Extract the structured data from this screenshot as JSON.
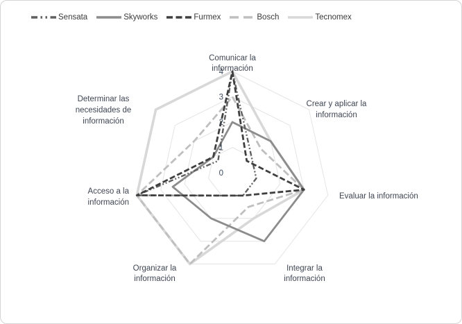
{
  "chart_data": {
    "type": "radar",
    "title": "",
    "legend_position": "top",
    "axis_range": {
      "min": 0,
      "max": 4,
      "step": 1
    },
    "tick_labels": [
      "0",
      "1",
      "2",
      "3",
      "4"
    ],
    "grid": {
      "shape": "heptagon",
      "rings": [
        1,
        2,
        3,
        4
      ],
      "color": "#e4e4e4"
    },
    "categories": [
      {
        "key": "comunicar",
        "label": "Comunicar la información",
        "lines": [
          "Comunicar la",
          "información"
        ]
      },
      {
        "key": "crear",
        "label": "Crear y aplicar la información",
        "lines": [
          "Crear y aplicar la",
          "información"
        ]
      },
      {
        "key": "evaluar",
        "label": "Evaluar la información",
        "lines": [
          "Evaluar la información"
        ]
      },
      {
        "key": "integrar",
        "label": "Integrar la información",
        "lines": [
          "Integrar la",
          "información"
        ]
      },
      {
        "key": "organizar",
        "label": "Organizar la información",
        "lines": [
          "Organizar la",
          "información"
        ]
      },
      {
        "key": "acceso",
        "label": "Acceso a la información",
        "lines": [
          "Acceso a la",
          "información"
        ]
      },
      {
        "key": "determinar",
        "label": "Determinar las necesidades de información",
        "lines": [
          "Determinar las",
          "necesidades de",
          "información"
        ]
      }
    ],
    "series": [
      {
        "key": "sensata",
        "name": "Sensata",
        "color": "#5f5f5f",
        "dash": "7 3 1.8 3 1.8 3",
        "legend_dash": "9 4.5 2.5 4.5 2.5 4.5",
        "width": 2.4,
        "values": [
          4,
          1,
          1,
          1,
          1,
          4,
          0.75
        ]
      },
      {
        "key": "skyworks",
        "name": "Skyworks",
        "color": "#8c8c8c",
        "dash": "",
        "legend_dash": "",
        "width": 2.8,
        "values": [
          2,
          2,
          3,
          3,
          2,
          2.5,
          1
        ]
      },
      {
        "key": "furmex",
        "name": "Furmex",
        "color": "#3f3f3f",
        "dash": "8 3.5",
        "legend_dash": "9 4.5",
        "width": 2.8,
        "values": [
          4,
          0.75,
          3,
          1,
          1,
          4,
          1
        ]
      },
      {
        "key": "bosch",
        "name": "Bosch",
        "color": "#bfbfbf",
        "dash": "10 4.5",
        "legend_dash": "13 7",
        "width": 2.8,
        "values": [
          3,
          1.5,
          3,
          1.5,
          4,
          4,
          2
        ]
      },
      {
        "key": "tecnomex",
        "name": "Tecnomex",
        "color": "#d8d8d8",
        "dash": "",
        "legend_dash": "",
        "width": 3.6,
        "values": [
          4,
          2,
          3,
          2,
          4,
          4,
          4
        ]
      }
    ]
  }
}
